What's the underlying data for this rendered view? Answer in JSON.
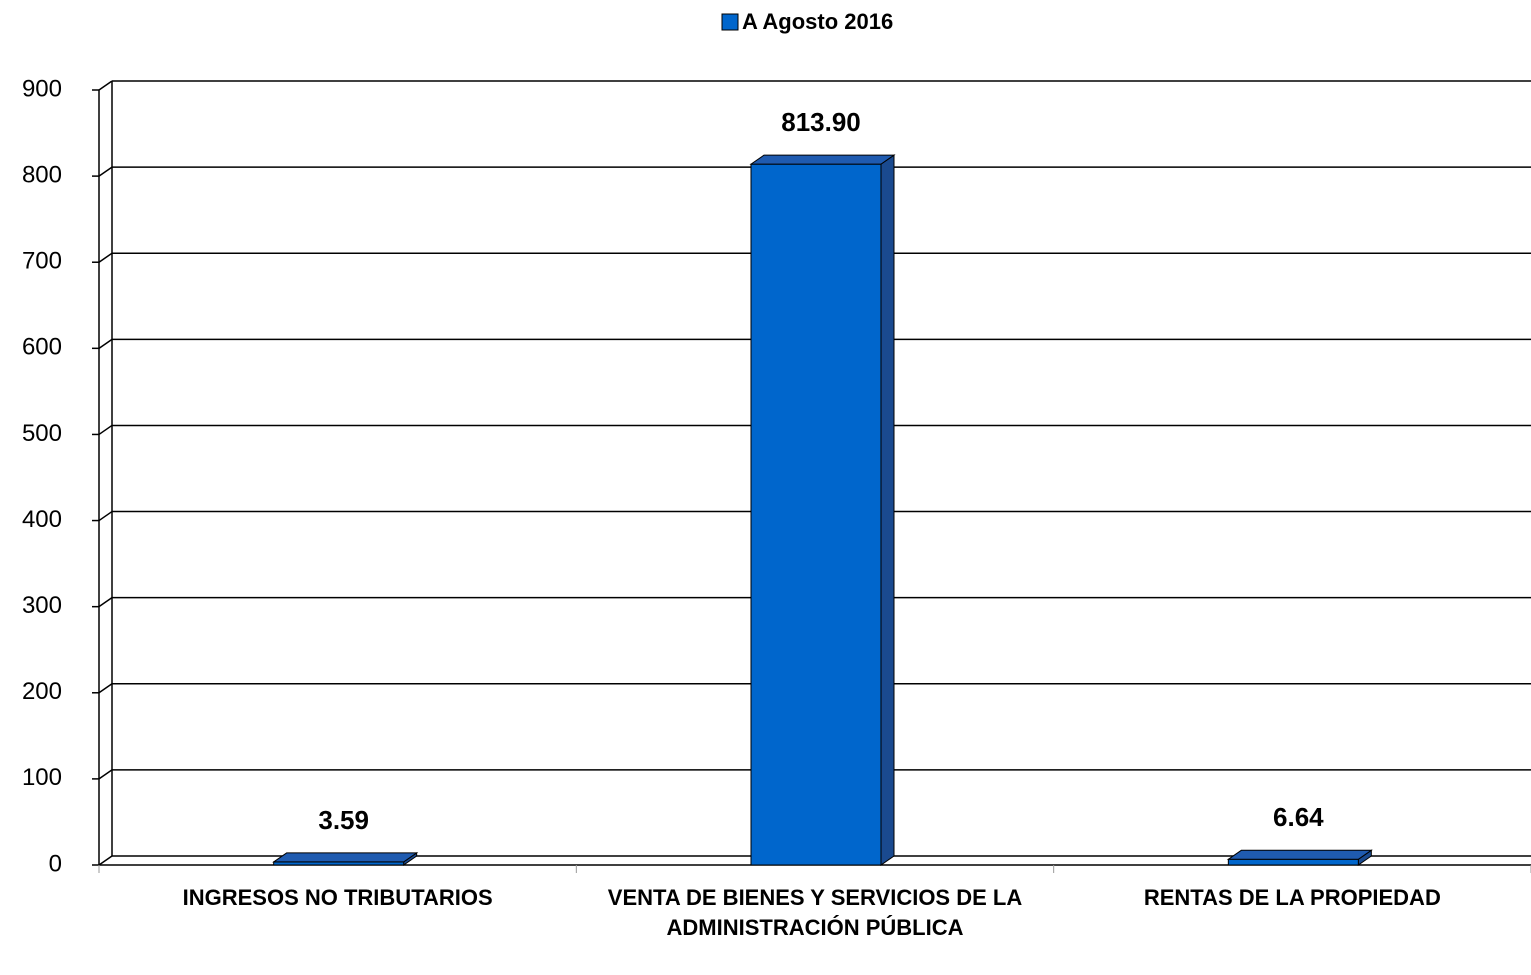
{
  "chart_data": {
    "type": "bar3d",
    "categories": [
      "INGRESOS NO TRIBUTARIOS",
      "VENTA DE BIENES Y SERVICIOS DE LA ADMINISTRACIÓN PÚBLICA",
      "RENTAS DE LA PROPIEDAD"
    ],
    "series": [
      {
        "name": "A Agosto 2016",
        "color": "#0066cc",
        "values": [
          3.59,
          813.9,
          6.64
        ],
        "value_labels": [
          "3.59",
          "813.90",
          "6.64"
        ]
      }
    ],
    "ylim": [
      0,
      900
    ],
    "yticks": [
      0,
      100,
      200,
      300,
      400,
      500,
      600,
      700,
      800,
      900
    ],
    "grid": true,
    "legend": "top"
  }
}
